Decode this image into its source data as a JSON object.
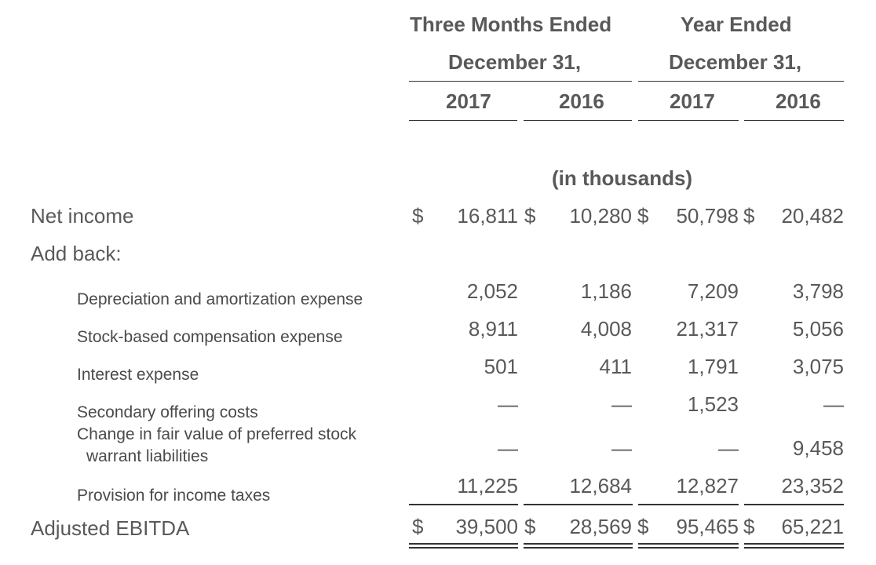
{
  "header": {
    "group1_line1": "Three Months Ended",
    "group1_line2": "December 31,",
    "group2_line1": "Year Ended",
    "group2_line2": "December 31,",
    "years": [
      "2017",
      "2016",
      "2017",
      "2016"
    ],
    "units": "(in thousands)"
  },
  "rows": {
    "net_income": {
      "label": "Net income",
      "currency": "$",
      "values": [
        "16,811",
        "10,280",
        "50,798",
        "20,482"
      ]
    },
    "add_back": {
      "label": "Add back:"
    },
    "depreciation": {
      "label": "Depreciation and amortization expense",
      "values": [
        "2,052",
        "1,186",
        "7,209",
        "3,798"
      ]
    },
    "stock_comp": {
      "label": "Stock-based compensation expense",
      "values": [
        "8,911",
        "4,008",
        "21,317",
        "5,056"
      ]
    },
    "interest": {
      "label": "Interest expense",
      "values": [
        "501",
        "411",
        "1,791",
        "3,075"
      ]
    },
    "secondary": {
      "label": "Secondary offering costs",
      "values": [
        "—",
        "—",
        "1,523",
        "—"
      ]
    },
    "warrant": {
      "label_line1": "Change in fair value of preferred stock",
      "label_line2": "warrant liabilities",
      "values": [
        "—",
        "—",
        "—",
        "9,458"
      ]
    },
    "tax": {
      "label": "Provision for income taxes",
      "values": [
        "11,225",
        "12,684",
        "12,827",
        "23,352"
      ]
    },
    "ebitda": {
      "label": "Adjusted EBITDA",
      "currency": "$",
      "values": [
        "39,500",
        "28,569",
        "95,465",
        "65,221"
      ]
    }
  }
}
